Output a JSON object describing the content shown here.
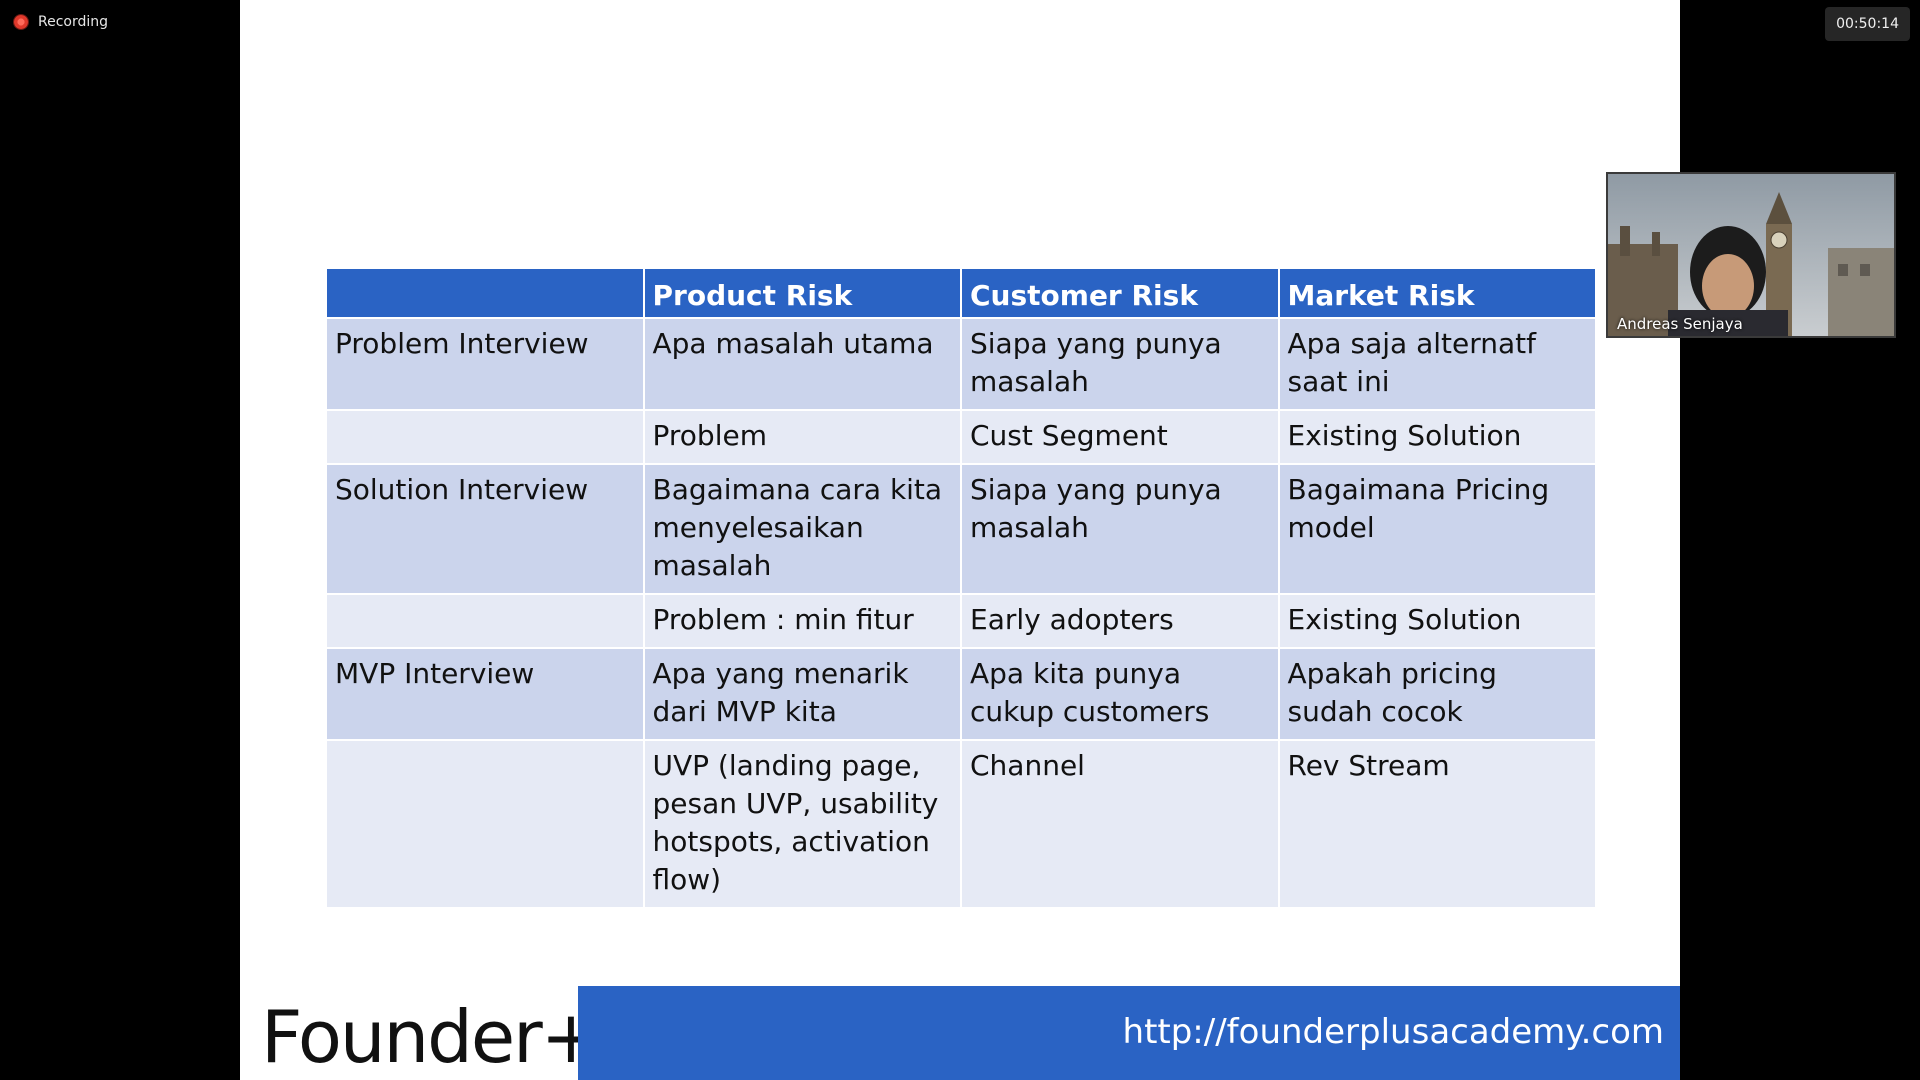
{
  "recording": {
    "label": "Recording",
    "icon": "record-dot-icon"
  },
  "timer": "00:50:14",
  "slide": {
    "table": {
      "headers": [
        "",
        "Product Risk",
        "Customer Risk",
        "Market Risk"
      ],
      "rows": [
        [
          "Problem Interview",
          "Apa masalah utama",
          "Siapa yang punya masalah",
          "Apa saja alternatf saat ini"
        ],
        [
          "",
          "Problem",
          "Cust Segment",
          "Existing Solution"
        ],
        [
          "Solution Interview",
          "Bagaimana cara kita menyelesaikan masalah",
          "Siapa yang punya masalah",
          "Bagaimana Pricing model"
        ],
        [
          "",
          "Problem : min fitur",
          "Early adopters",
          "Existing Solution"
        ],
        [
          "MVP Interview",
          "Apa yang menarik dari MVP kita",
          "Apa kita punya cukup customers",
          "Apakah pricing sudah cocok"
        ],
        [
          "",
          "UVP (landing page, pesan UVP, usability hotspots, activation flow)",
          "Channel",
          "Rev Stream"
        ]
      ]
    },
    "brand": "Founder+",
    "url": "http://founderplusacademy.com"
  },
  "participant": {
    "name": "Andreas Senjaya"
  },
  "colors": {
    "header_blue": "#2a63c4",
    "row_dark": "#cbd4ec",
    "row_light": "#e6eaf5"
  }
}
